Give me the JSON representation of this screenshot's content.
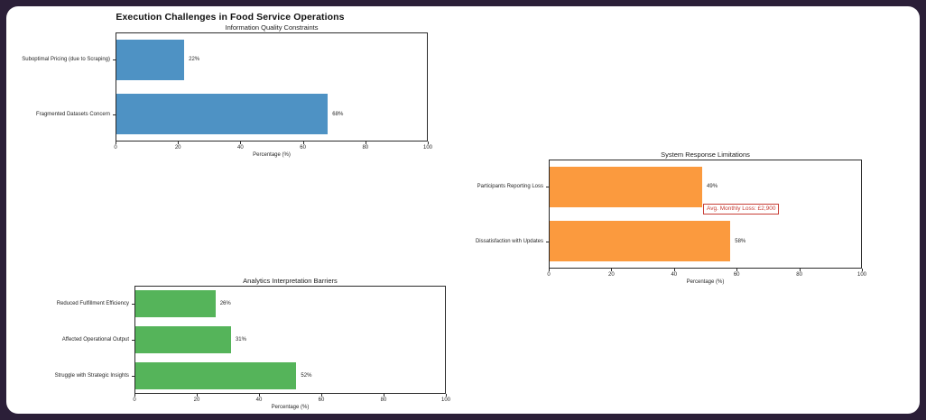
{
  "frame": {
    "border_color": "#2b1f38",
    "canvas_color": "#ffffff"
  },
  "figure_title": "Execution Challenges in Food Service Operations",
  "chart_data": [
    {
      "type": "bar",
      "orientation": "horizontal",
      "title": "Information Quality Constraints",
      "categories": [
        "Suboptimal Pricing (due to Scraping)",
        "Fragmented Datasets Concern"
      ],
      "values": [
        22,
        68
      ],
      "value_labels": [
        "22%",
        "68%"
      ],
      "bar_color": "#4e92c4",
      "xlabel": "Percentage (%)",
      "xlim": [
        0,
        100
      ],
      "xticks": [
        0,
        20,
        40,
        60,
        80,
        100
      ],
      "grid": false,
      "legend": null
    },
    {
      "type": "bar",
      "orientation": "horizontal",
      "title": "System Response Limitations",
      "categories": [
        "Participants Reporting Loss",
        "Dissatisfaction with Updates"
      ],
      "values": [
        49,
        58
      ],
      "value_labels": [
        "49%",
        "58%"
      ],
      "bar_color": "#fb9a3e",
      "xlabel": "Percentage (%)",
      "xlim": [
        0,
        100
      ],
      "xticks": [
        0,
        20,
        40,
        60,
        80,
        100
      ],
      "grid": false,
      "legend": null,
      "annotation": {
        "text": "Avg. Monthly Loss: £2,900",
        "color": "#c73e36"
      }
    },
    {
      "type": "bar",
      "orientation": "horizontal",
      "title": "Analytics Interpretation Barriers",
      "categories": [
        "Reduced Fulfillment Efficiency",
        "Affected Operational Output",
        "Struggle with Strategic Insights"
      ],
      "values": [
        26,
        31,
        52
      ],
      "value_labels": [
        "26%",
        "31%",
        "52%"
      ],
      "bar_color": "#55b45a",
      "xlabel": "Percentage (%)",
      "xlim": [
        0,
        100
      ],
      "xticks": [
        0,
        20,
        40,
        60,
        80,
        100
      ],
      "grid": false,
      "legend": null
    }
  ]
}
